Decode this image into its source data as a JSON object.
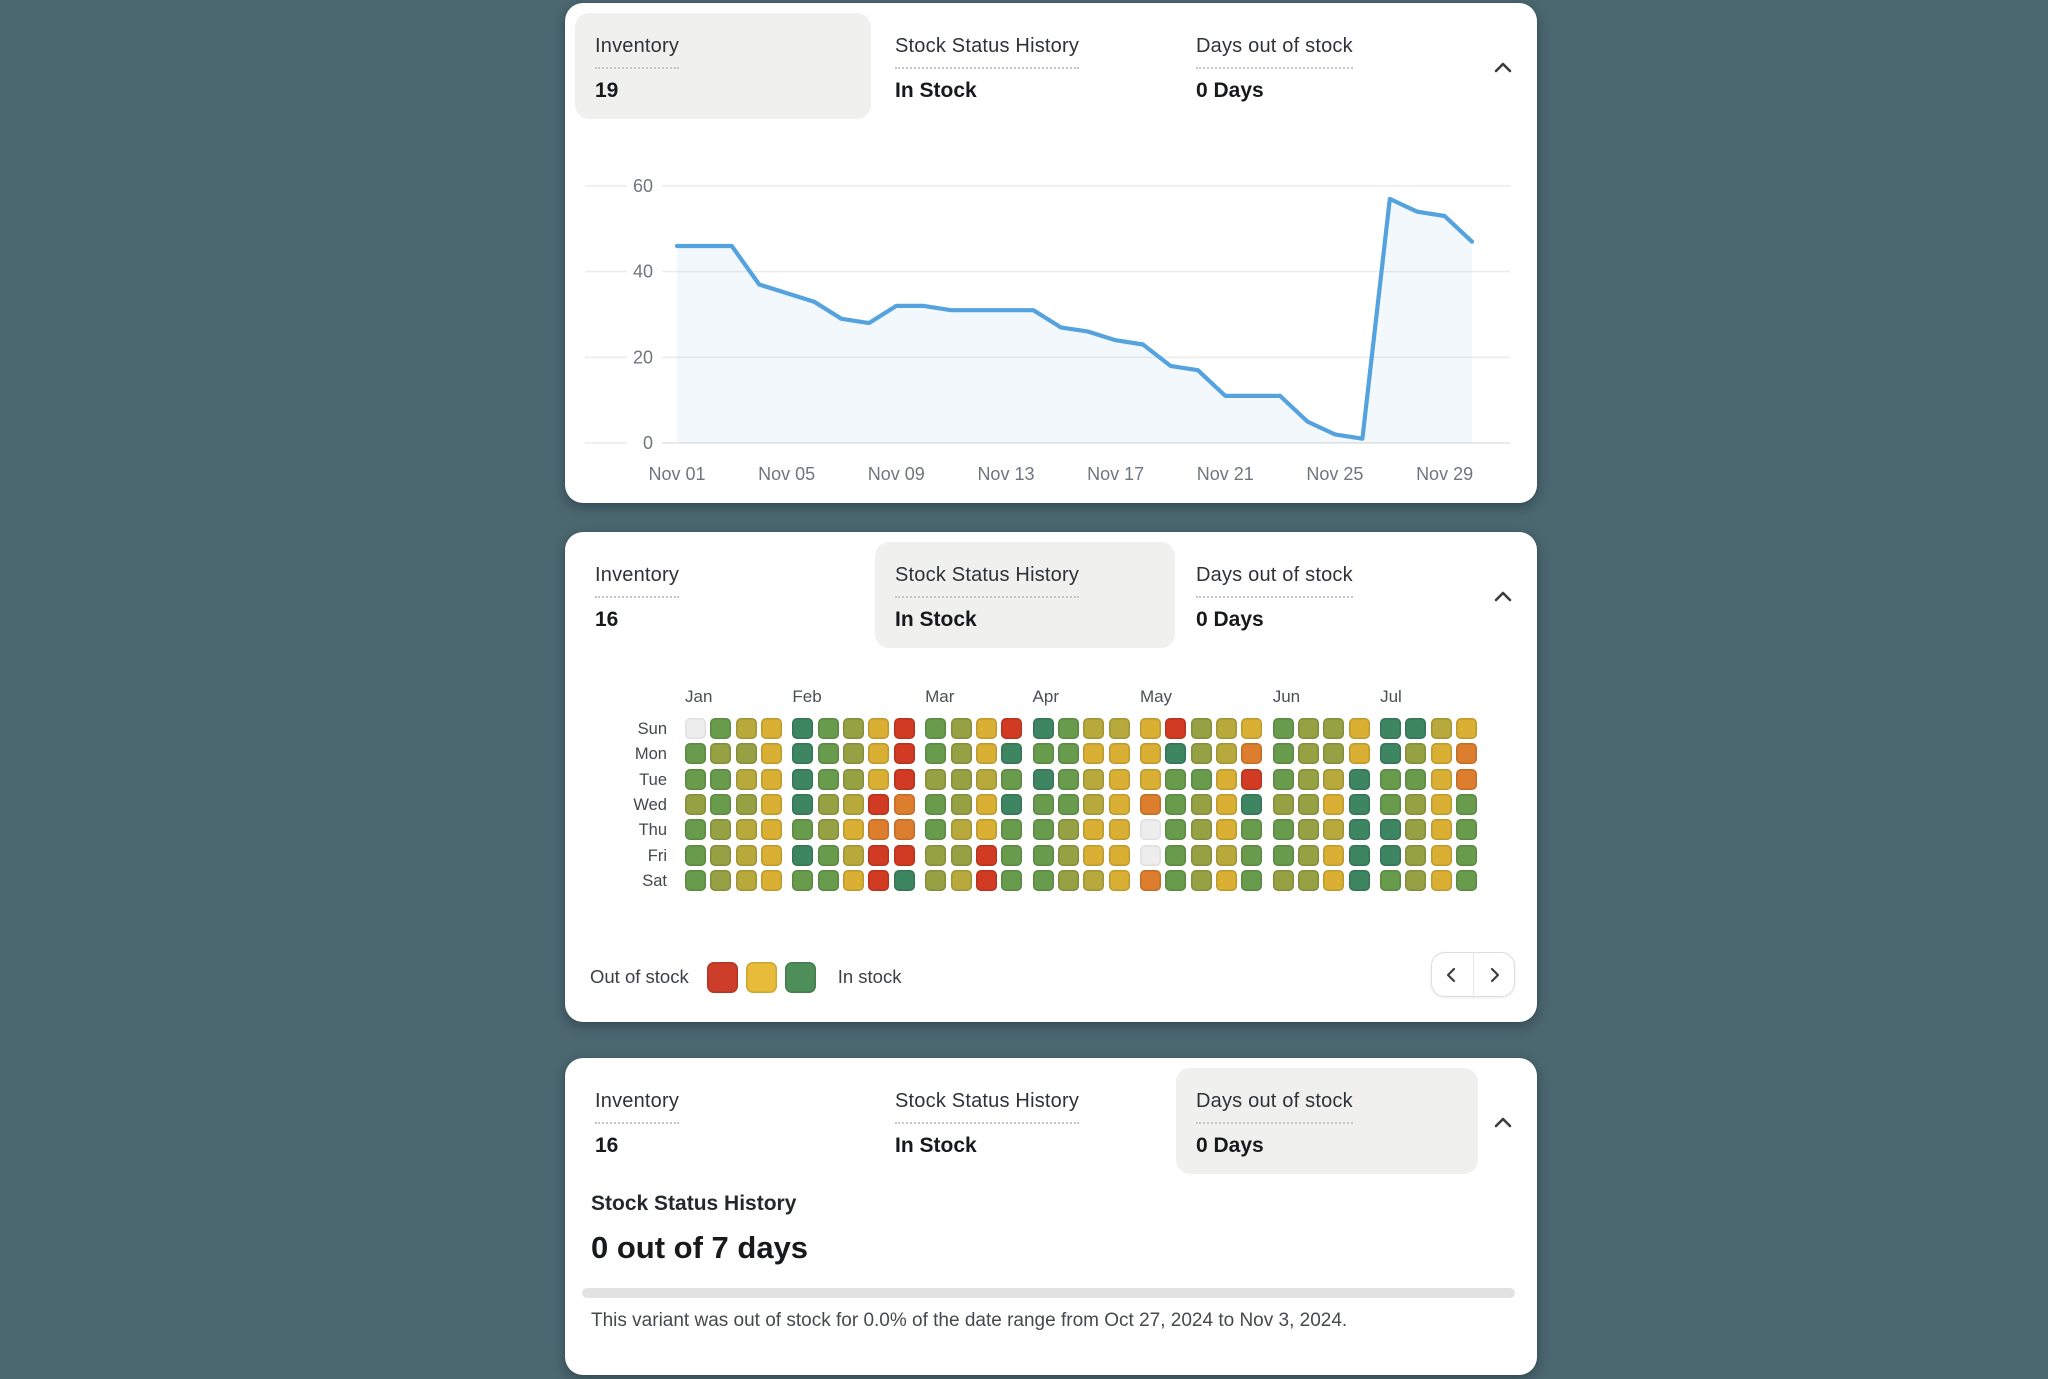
{
  "background_color": "#4b6770",
  "cards": [
    {
      "tabs": [
        {
          "label": "Inventory",
          "value": "19",
          "selected": true
        },
        {
          "label": "Stock Status History",
          "value": "In Stock",
          "selected": false
        },
        {
          "label": "Days out of stock",
          "value": "0 Days",
          "selected": false
        }
      ],
      "collapse_icon": "chevron-up"
    },
    {
      "tabs": [
        {
          "label": "Inventory",
          "value": "16",
          "selected": false
        },
        {
          "label": "Stock Status History",
          "value": "In Stock",
          "selected": true
        },
        {
          "label": "Days out of stock",
          "value": "0 Days",
          "selected": false
        }
      ],
      "collapse_icon": "chevron-up"
    },
    {
      "tabs": [
        {
          "label": "Inventory",
          "value": "16",
          "selected": false
        },
        {
          "label": "Stock Status History",
          "value": "In Stock",
          "selected": false
        },
        {
          "label": "Days out of stock",
          "value": "0 Days",
          "selected": true
        }
      ],
      "collapse_icon": "chevron-up"
    }
  ],
  "chart_data": [
    {
      "type": "line",
      "series": [
        {
          "name": "Inventory",
          "color": "#55a3de",
          "values": [
            46,
            46,
            46,
            37,
            35,
            33,
            29,
            28,
            32,
            32,
            31,
            31,
            31,
            31,
            27,
            26,
            24,
            23,
            18,
            17,
            11,
            11,
            11,
            5,
            2,
            1,
            57,
            54,
            53,
            47
          ]
        }
      ],
      "x_range": [
        "Nov 01",
        "Nov 30"
      ],
      "x_ticks": [
        "Nov 01",
        "Nov 05",
        "Nov 09",
        "Nov 13",
        "Nov 17",
        "Nov 21",
        "Nov 25",
        "Nov 29"
      ],
      "x_tick_days": [
        1,
        5,
        9,
        13,
        17,
        21,
        25,
        29
      ],
      "y_ticks": [
        0,
        20,
        40,
        60
      ],
      "ylim": [
        0,
        62
      ],
      "grid": true,
      "legend_position": "none"
    },
    {
      "type": "heatmap",
      "rows": [
        "Sun",
        "Mon",
        "Tue",
        "Wed",
        "Thu",
        "Fri",
        "Sat"
      ],
      "months": [
        {
          "label": "Jan",
          "weeks": 4
        },
        {
          "label": "Feb",
          "weeks": 5
        },
        {
          "label": "Mar",
          "weeks": 4
        },
        {
          "label": "Apr",
          "weeks": 4
        },
        {
          "label": "May",
          "weeks": 5
        },
        {
          "label": "Jun",
          "weeks": 4
        },
        {
          "label": "Jul",
          "weeks": 4
        }
      ],
      "palette": {
        "e": "#ededed",
        "g3": "#3e8562",
        "g2": "#699b4d",
        "g1": "#96a144",
        "y2": "#b7a93c",
        "y1": "#d9b034",
        "o": "#dd7e2e",
        "r": "#d23b23"
      },
      "legend": {
        "out": "Out of stock",
        "in": "In stock",
        "swatch_colors": [
          "#cc3e2a",
          "#e8bb3b",
          "#4e8e58"
        ]
      },
      "cells": [
        [
          "e",
          "g2",
          "y2",
          "y1",
          "g3",
          "g2",
          "g1",
          "y1",
          "r",
          "g2",
          "g1",
          "y1",
          "r",
          "g3",
          "g2",
          "y2",
          "y2",
          "y1",
          "r",
          "g1",
          "y2",
          "y1",
          "g2",
          "g1",
          "g1",
          "y1",
          "g3",
          "g3",
          "y2",
          "y1"
        ],
        [
          "g2",
          "g1",
          "g1",
          "y1",
          "g3",
          "g2",
          "g1",
          "y1",
          "r",
          "g2",
          "g1",
          "y1",
          "g3",
          "g2",
          "g2",
          "y1",
          "y1",
          "y1",
          "g3",
          "g1",
          "y2",
          "o",
          "g2",
          "g1",
          "g1",
          "y1",
          "g3",
          "g1",
          "y1",
          "o"
        ],
        [
          "g2",
          "g2",
          "y2",
          "y1",
          "g3",
          "g2",
          "g1",
          "y1",
          "r",
          "g1",
          "g1",
          "y2",
          "g2",
          "g3",
          "g2",
          "y2",
          "y1",
          "y1",
          "g2",
          "g2",
          "y1",
          "r",
          "g2",
          "g1",
          "y2",
          "g3",
          "g2",
          "g2",
          "y1",
          "o"
        ],
        [
          "g1",
          "g2",
          "g1",
          "y1",
          "g3",
          "g1",
          "y2",
          "r",
          "o",
          "g2",
          "g1",
          "y1",
          "g3",
          "g2",
          "g2",
          "y2",
          "y1",
          "o",
          "g2",
          "g1",
          "y1",
          "g3",
          "g1",
          "g1",
          "y1",
          "g3",
          "g2",
          "g1",
          "y1",
          "g2"
        ],
        [
          "g2",
          "g1",
          "y2",
          "y1",
          "g2",
          "g1",
          "y1",
          "o",
          "o",
          "g2",
          "y2",
          "y1",
          "g2",
          "g2",
          "g1",
          "y1",
          "y1",
          "e",
          "g2",
          "g1",
          "y1",
          "g2",
          "g2",
          "g1",
          "y2",
          "g3",
          "g3",
          "g1",
          "y1",
          "g2"
        ],
        [
          "g2",
          "g1",
          "y2",
          "y1",
          "g3",
          "g2",
          "y2",
          "r",
          "r",
          "g1",
          "g1",
          "r",
          "g2",
          "g2",
          "g1",
          "y1",
          "y1",
          "e",
          "g2",
          "g1",
          "y2",
          "g2",
          "g2",
          "g1",
          "y1",
          "g3",
          "g3",
          "g1",
          "y1",
          "g2"
        ],
        [
          "g2",
          "g1",
          "y2",
          "y1",
          "g2",
          "g2",
          "y1",
          "r",
          "g3",
          "g1",
          "y2",
          "r",
          "g2",
          "g2",
          "g1",
          "y2",
          "y1",
          "o",
          "g2",
          "g1",
          "y1",
          "g2",
          "g1",
          "g1",
          "y1",
          "g3",
          "g2",
          "g1",
          "y1",
          "g2"
        ]
      ],
      "pager_icons": [
        "chevron-left",
        "chevron-right"
      ]
    }
  ],
  "summary": {
    "heading": "Stock Status History",
    "value": "0 out of 7 days",
    "progress_pct": 0,
    "description": "This variant was out of stock for 0.0% of the date range from Oct 27, 2024 to Nov 3, 2024."
  }
}
